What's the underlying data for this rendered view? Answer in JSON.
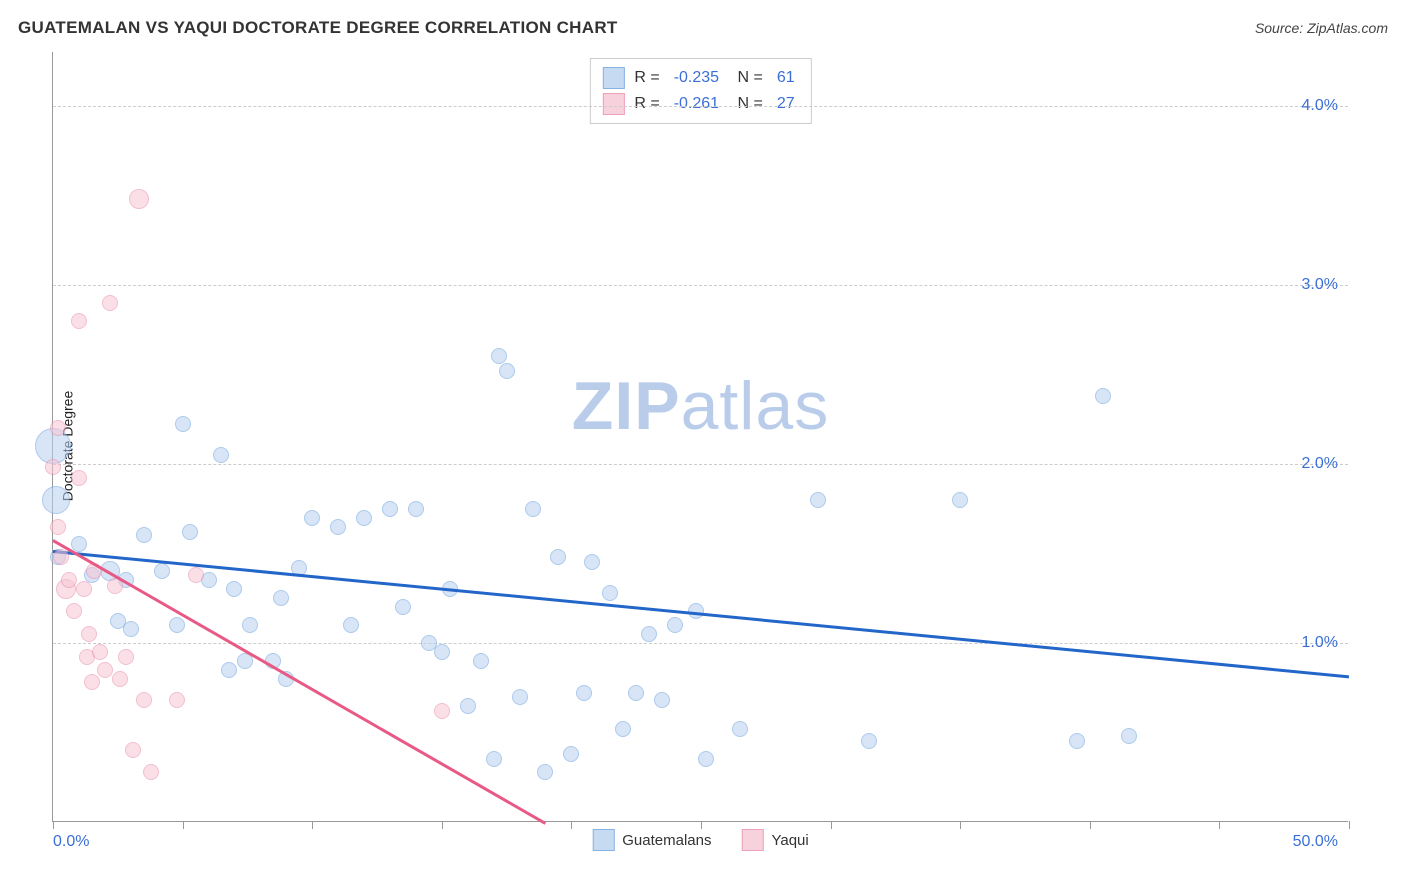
{
  "title": "GUATEMALAN VS YAQUI DOCTORATE DEGREE CORRELATION CHART",
  "source_label": "Source: ZipAtlas.com",
  "y_axis_label": "Doctorate Degree",
  "watermark": {
    "part1": "ZIP",
    "part2": "atlas"
  },
  "chart": {
    "type": "scatter",
    "background_color": "#ffffff",
    "grid_color": "#cccccc",
    "axis_color": "#999999",
    "xlim": [
      0,
      50
    ],
    "ylim": [
      0,
      4.3
    ],
    "x_tick_positions": [
      0,
      5,
      10,
      15,
      20,
      25,
      30,
      35,
      40,
      45,
      50
    ],
    "x_label_min": "0.0%",
    "x_label_max": "50.0%",
    "y_gridlines": [
      {
        "value": 1.0,
        "label": "1.0%"
      },
      {
        "value": 2.0,
        "label": "2.0%"
      },
      {
        "value": 3.0,
        "label": "3.0%"
      },
      {
        "value": 4.0,
        "label": "4.0%"
      }
    ],
    "y_tick_color": "#3b6fd6",
    "x_tick_color": "#3b6fd6",
    "series": [
      {
        "name": "Guatemalans",
        "fill_color": "#b9d1f0",
        "stroke_color": "#6a9fe0",
        "fill_opacity": 0.55,
        "line_color": "#2366c9",
        "marker_base_radius": 8,
        "R": "-0.235",
        "N": "61",
        "trend": {
          "x1": 0,
          "y1": 1.52,
          "x2": 50,
          "y2": 0.82
        },
        "points": [
          {
            "x": 0.0,
            "y": 2.1,
            "r": 18
          },
          {
            "x": 0.1,
            "y": 1.8,
            "r": 14
          },
          {
            "x": 0.2,
            "y": 1.48,
            "r": 8
          },
          {
            "x": 1.0,
            "y": 1.55,
            "r": 8
          },
          {
            "x": 1.5,
            "y": 1.38,
            "r": 8
          },
          {
            "x": 2.2,
            "y": 1.4,
            "r": 10
          },
          {
            "x": 2.5,
            "y": 1.12,
            "r": 8
          },
          {
            "x": 2.8,
            "y": 1.35,
            "r": 8
          },
          {
            "x": 3.0,
            "y": 1.08,
            "r": 8
          },
          {
            "x": 3.5,
            "y": 1.6,
            "r": 8
          },
          {
            "x": 4.2,
            "y": 1.4,
            "r": 8
          },
          {
            "x": 4.8,
            "y": 1.1,
            "r": 8
          },
          {
            "x": 5.3,
            "y": 1.62,
            "r": 8
          },
          {
            "x": 5.0,
            "y": 2.22,
            "r": 8
          },
          {
            "x": 6.0,
            "y": 1.35,
            "r": 8
          },
          {
            "x": 6.5,
            "y": 2.05,
            "r": 8
          },
          {
            "x": 6.8,
            "y": 0.85,
            "r": 8
          },
          {
            "x": 7.0,
            "y": 1.3,
            "r": 8
          },
          {
            "x": 7.4,
            "y": 0.9,
            "r": 8
          },
          {
            "x": 7.6,
            "y": 1.1,
            "r": 8
          },
          {
            "x": 8.5,
            "y": 0.9,
            "r": 8
          },
          {
            "x": 8.8,
            "y": 1.25,
            "r": 8
          },
          {
            "x": 9.0,
            "y": 0.8,
            "r": 8
          },
          {
            "x": 9.5,
            "y": 1.42,
            "r": 8
          },
          {
            "x": 10.0,
            "y": 1.7,
            "r": 8
          },
          {
            "x": 11.0,
            "y": 1.65,
            "r": 8
          },
          {
            "x": 11.5,
            "y": 1.1,
            "r": 8
          },
          {
            "x": 12.0,
            "y": 1.7,
            "r": 8
          },
          {
            "x": 13.0,
            "y": 1.75,
            "r": 8
          },
          {
            "x": 13.5,
            "y": 1.2,
            "r": 8
          },
          {
            "x": 14.0,
            "y": 1.75,
            "r": 8
          },
          {
            "x": 14.5,
            "y": 1.0,
            "r": 8
          },
          {
            "x": 15.0,
            "y": 0.95,
            "r": 8
          },
          {
            "x": 15.3,
            "y": 1.3,
            "r": 8
          },
          {
            "x": 16.0,
            "y": 0.65,
            "r": 8
          },
          {
            "x": 16.5,
            "y": 0.9,
            "r": 8
          },
          {
            "x": 17.0,
            "y": 0.35,
            "r": 8
          },
          {
            "x": 17.2,
            "y": 2.6,
            "r": 8
          },
          {
            "x": 17.5,
            "y": 2.52,
            "r": 8
          },
          {
            "x": 18.0,
            "y": 0.7,
            "r": 8
          },
          {
            "x": 18.5,
            "y": 1.75,
            "r": 8
          },
          {
            "x": 19.0,
            "y": 0.28,
            "r": 8
          },
          {
            "x": 19.5,
            "y": 1.48,
            "r": 8
          },
          {
            "x": 20.0,
            "y": 0.38,
            "r": 8
          },
          {
            "x": 20.5,
            "y": 0.72,
            "r": 8
          },
          {
            "x": 20.8,
            "y": 1.45,
            "r": 8
          },
          {
            "x": 21.5,
            "y": 1.28,
            "r": 8
          },
          {
            "x": 22.0,
            "y": 0.52,
            "r": 8
          },
          {
            "x": 22.5,
            "y": 0.72,
            "r": 8
          },
          {
            "x": 23.0,
            "y": 1.05,
            "r": 8
          },
          {
            "x": 23.5,
            "y": 0.68,
            "r": 8
          },
          {
            "x": 24.0,
            "y": 1.1,
            "r": 8
          },
          {
            "x": 24.8,
            "y": 1.18,
            "r": 8
          },
          {
            "x": 25.2,
            "y": 0.35,
            "r": 8
          },
          {
            "x": 26.5,
            "y": 0.52,
            "r": 8
          },
          {
            "x": 29.5,
            "y": 1.8,
            "r": 8
          },
          {
            "x": 31.5,
            "y": 0.45,
            "r": 8
          },
          {
            "x": 35.0,
            "y": 1.8,
            "r": 8
          },
          {
            "x": 39.5,
            "y": 0.45,
            "r": 8
          },
          {
            "x": 40.5,
            "y": 2.38,
            "r": 8
          },
          {
            "x": 41.5,
            "y": 0.48,
            "r": 8
          }
        ]
      },
      {
        "name": "Yaqui",
        "fill_color": "#f6c6d4",
        "stroke_color": "#eb8aa8",
        "fill_opacity": 0.55,
        "line_color": "#e85a85",
        "marker_base_radius": 8,
        "R": "-0.261",
        "N": "27",
        "trend": {
          "x1": 0,
          "y1": 1.58,
          "x2": 19,
          "y2": 0.0
        },
        "points": [
          {
            "x": 0.0,
            "y": 1.98,
            "r": 8
          },
          {
            "x": 0.2,
            "y": 1.65,
            "r": 8
          },
          {
            "x": 0.3,
            "y": 1.48,
            "r": 8
          },
          {
            "x": 0.2,
            "y": 2.2,
            "r": 8
          },
          {
            "x": 0.5,
            "y": 1.3,
            "r": 10
          },
          {
            "x": 0.6,
            "y": 1.35,
            "r": 8
          },
          {
            "x": 0.8,
            "y": 1.18,
            "r": 8
          },
          {
            "x": 1.0,
            "y": 1.92,
            "r": 8
          },
          {
            "x": 1.2,
            "y": 1.3,
            "r": 8
          },
          {
            "x": 1.3,
            "y": 0.92,
            "r": 8
          },
          {
            "x": 1.4,
            "y": 1.05,
            "r": 8
          },
          {
            "x": 1.5,
            "y": 0.78,
            "r": 8
          },
          {
            "x": 1.6,
            "y": 1.4,
            "r": 8
          },
          {
            "x": 1.0,
            "y": 2.8,
            "r": 8
          },
          {
            "x": 1.8,
            "y": 0.95,
            "r": 8
          },
          {
            "x": 2.0,
            "y": 0.85,
            "r": 8
          },
          {
            "x": 2.2,
            "y": 2.9,
            "r": 8
          },
          {
            "x": 2.4,
            "y": 1.32,
            "r": 8
          },
          {
            "x": 2.6,
            "y": 0.8,
            "r": 8
          },
          {
            "x": 2.8,
            "y": 0.92,
            "r": 8
          },
          {
            "x": 3.1,
            "y": 0.4,
            "r": 8
          },
          {
            "x": 3.3,
            "y": 3.48,
            "r": 10
          },
          {
            "x": 3.5,
            "y": 0.68,
            "r": 8
          },
          {
            "x": 3.8,
            "y": 0.28,
            "r": 8
          },
          {
            "x": 4.8,
            "y": 0.68,
            "r": 8
          },
          {
            "x": 5.5,
            "y": 1.38,
            "r": 8
          },
          {
            "x": 15.0,
            "y": 0.62,
            "r": 8
          }
        ]
      }
    ],
    "legend_top": {
      "R_label": "R =",
      "N_label": "N ="
    },
    "legend_bottom_labels": [
      "Guatemalans",
      "Yaqui"
    ]
  }
}
